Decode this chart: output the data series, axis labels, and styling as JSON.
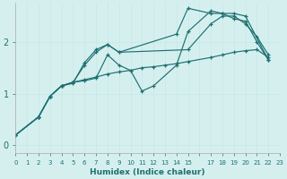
{
  "xlabel": "Humidex (Indice chaleur)",
  "bg_color": "#d5efef",
  "grid_color_major": "#c8e8e8",
  "grid_color_minor": "#ddf4f4",
  "line_color": "#1e7070",
  "xlim": [
    0,
    23
  ],
  "ylim": [
    -0.15,
    2.75
  ],
  "yticks": [
    0,
    1,
    2
  ],
  "xtick_labels": [
    "0",
    "1",
    "2",
    "3",
    "4",
    "5",
    "6",
    "7",
    "8",
    "9",
    "10",
    "11",
    "12",
    "13",
    "14",
    "15",
    "",
    "17",
    "18",
    "19",
    "20",
    "21",
    "22",
    "23"
  ],
  "series": [
    {
      "x": [
        0,
        2,
        3,
        4,
        5,
        6,
        7,
        8,
        9,
        15,
        17,
        18,
        19,
        20,
        21,
        22
      ],
      "y": [
        0.2,
        0.55,
        0.95,
        1.15,
        1.2,
        1.6,
        1.85,
        1.95,
        1.8,
        1.85,
        2.35,
        2.5,
        2.5,
        2.35,
        2.1,
        1.75
      ]
    },
    {
      "x": [
        0,
        2,
        3,
        4,
        5,
        6,
        7,
        8,
        9,
        10,
        11,
        12,
        14,
        15,
        17,
        18,
        19,
        20,
        22
      ],
      "y": [
        0.2,
        0.55,
        0.95,
        1.15,
        1.22,
        1.25,
        1.3,
        1.75,
        1.55,
        1.45,
        1.05,
        1.15,
        1.55,
        2.2,
        2.6,
        2.55,
        2.55,
        2.5,
        1.65
      ]
    },
    {
      "x": [
        0,
        2,
        3,
        4,
        5,
        6,
        7,
        8,
        9,
        10,
        11,
        12,
        13,
        14,
        15,
        17,
        18,
        19,
        20,
        21,
        22
      ],
      "y": [
        0.2,
        0.55,
        0.95,
        1.15,
        1.22,
        1.27,
        1.32,
        1.38,
        1.42,
        1.45,
        1.5,
        1.52,
        1.55,
        1.58,
        1.62,
        1.7,
        1.75,
        1.8,
        1.83,
        1.85,
        1.7
      ]
    },
    {
      "x": [
        0,
        2,
        3,
        4,
        5,
        6,
        7,
        8,
        9,
        14,
        15,
        17,
        18,
        19,
        20,
        21,
        22
      ],
      "y": [
        0.2,
        0.55,
        0.95,
        1.15,
        1.22,
        1.55,
        1.8,
        1.95,
        1.8,
        2.15,
        2.65,
        2.55,
        2.55,
        2.45,
        2.4,
        2.0,
        1.65
      ]
    }
  ]
}
